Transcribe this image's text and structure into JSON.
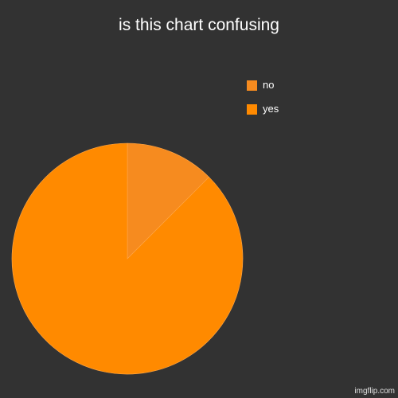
{
  "chart_data": {
    "type": "pie",
    "title": "is this chart confusing",
    "categories": [
      "yes",
      "no"
    ],
    "values": [
      87.5,
      12.5
    ],
    "colors": [
      "#ff8a00",
      "#f68b1f"
    ],
    "legend_position": "top-right",
    "legend": [
      {
        "label": "no",
        "color": "#f68b1f"
      },
      {
        "label": "yes",
        "color": "#ff8a00"
      }
    ]
  },
  "background": "#323232",
  "watermark": "imgflip.com"
}
